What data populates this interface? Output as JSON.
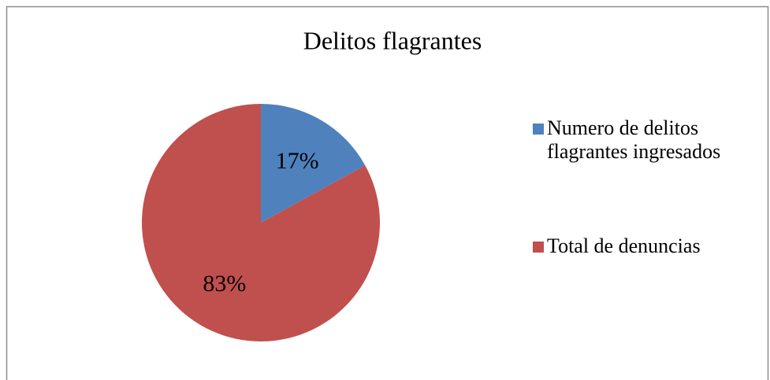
{
  "chart_data": {
    "type": "pie",
    "title": "Delitos flagrantes",
    "categories": [
      "Numero de delitos flagrantes ingresados",
      "Total de denuncias"
    ],
    "values": [
      17,
      83
    ],
    "value_labels": [
      "17%",
      "83%"
    ],
    "colors": [
      "#4f81bd",
      "#c0504d"
    ],
    "legend": "right"
  }
}
